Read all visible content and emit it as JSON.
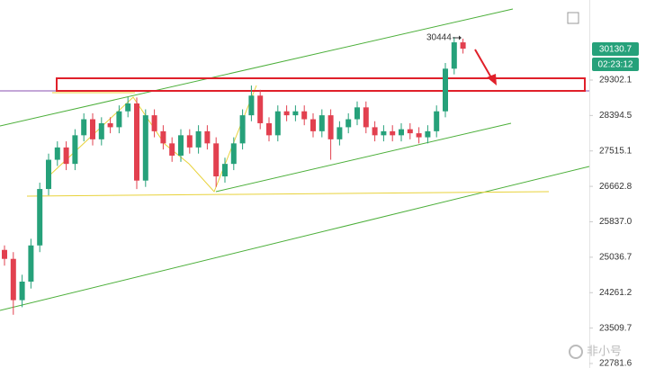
{
  "chart_data": {
    "type": "candlestick",
    "up_color": "#26a17a",
    "down_color": "#e2404f",
    "open": [
      25200,
      25000,
      24100,
      24500,
      25300,
      26600,
      27300,
      27600,
      27200,
      27900,
      28300,
      27800,
      28200,
      28100,
      28500,
      28700,
      26800,
      28400,
      28000,
      27700,
      27400,
      27900,
      27600,
      28000,
      27700,
      26900,
      27200,
      27700,
      28400,
      28900,
      28200,
      27900,
      28500,
      28400,
      28500,
      28300,
      28000,
      28400,
      27800,
      28100,
      28300,
      28600,
      28100,
      27900,
      28000,
      27900,
      28050,
      27950,
      27850,
      28000,
      28500,
      29600,
      30300
    ],
    "high": [
      25300,
      25150,
      24650,
      25450,
      26750,
      27450,
      27750,
      27750,
      28050,
      28450,
      28450,
      28350,
      28350,
      28650,
      28860,
      28850,
      28550,
      28550,
      28150,
      27850,
      28050,
      28050,
      28150,
      28150,
      27850,
      27350,
      27850,
      28550,
      29160,
      29050,
      28350,
      28650,
      28650,
      28650,
      28650,
      28450,
      28550,
      28550,
      28250,
      28450,
      28750,
      28750,
      28250,
      28150,
      28150,
      28200,
      28200,
      28100,
      28150,
      28650,
      29750,
      30444,
      30400
    ],
    "low": [
      24850,
      23790,
      23950,
      24350,
      25150,
      26450,
      27150,
      27050,
      27050,
      27750,
      27650,
      27650,
      27950,
      27950,
      28350,
      26600,
      26650,
      27850,
      27550,
      27250,
      27250,
      27450,
      27450,
      27550,
      26650,
      26750,
      27050,
      27550,
      28250,
      28050,
      27750,
      27750,
      28250,
      28250,
      28150,
      27850,
      27850,
      27300,
      27650,
      27950,
      28150,
      27950,
      27750,
      27750,
      27750,
      27750,
      27800,
      27700,
      27700,
      27850,
      28350,
      29450,
      30000
    ],
    "close": [
      25000,
      24100,
      24500,
      25300,
      26600,
      27300,
      27600,
      27200,
      27900,
      28300,
      27800,
      28200,
      28100,
      28500,
      28700,
      26800,
      28400,
      28000,
      27700,
      27400,
      27900,
      27600,
      28000,
      27700,
      26900,
      27200,
      27700,
      28400,
      28900,
      28200,
      27900,
      28500,
      28400,
      28500,
      28300,
      28000,
      28400,
      27800,
      28100,
      28300,
      28600,
      28100,
      27900,
      28000,
      27900,
      28050,
      27950,
      27850,
      28000,
      28500,
      29600,
      30300,
      30130
    ],
    "ylim": [
      22691,
      31461
    ],
    "log_scale": true,
    "yticks": [
      29302.1,
      28394.5,
      27515.1,
      26662.8,
      {
        "value": 25837,
        "label": "25837.0"
      },
      25036.7,
      24261.2,
      23509.7,
      22781.6
    ],
    "last_price": 30130.7,
    "countdown": "02:23:12",
    "annotation": "30444",
    "watermark": "非小号"
  }
}
